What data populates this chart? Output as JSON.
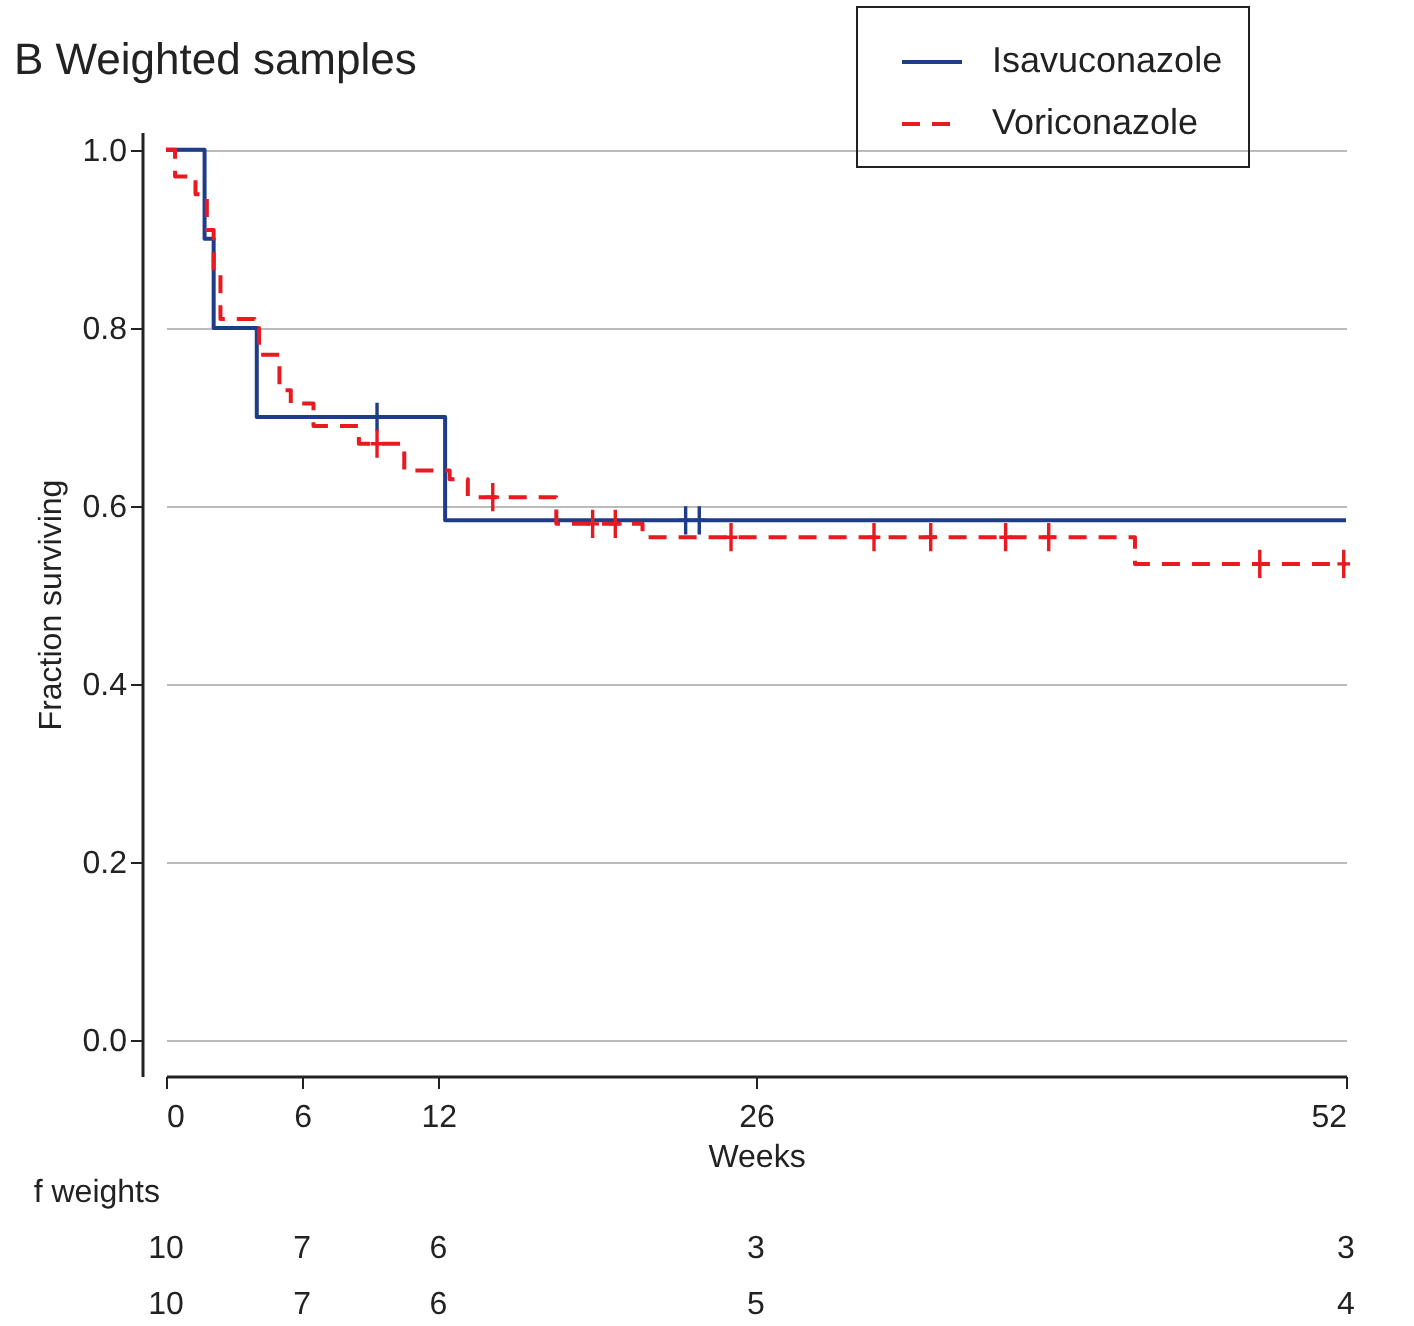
{
  "chart_data": {
    "type": "step",
    "title": "B Weighted samples",
    "xlabel": "Weeks",
    "ylabel": "Fraction surviving",
    "xlim": [
      0,
      52
    ],
    "xticks": [
      0,
      6,
      12,
      26,
      52
    ],
    "ylim": [
      -0.04,
      1.02
    ],
    "yticks": [
      {
        "value": 0,
        "label": "0.0"
      },
      {
        "value": 0.2,
        "label": "0.2"
      },
      {
        "value": 0.4,
        "label": "0.4"
      },
      {
        "value": 0.6,
        "label": "0.6"
      },
      {
        "value": 0.8,
        "label": "0.8"
      },
      {
        "value": 1,
        "label": "1.0"
      }
    ],
    "grid": "y",
    "legend": "top right",
    "series": [
      {
        "name": "Isavuconazole",
        "color": "#1f3c88",
        "line_style": "solid",
        "x": [
          0,
          1.7,
          2.1,
          4.0,
          12.3,
          52
        ],
        "values": [
          1.0,
          0.9,
          0.8,
          0.7,
          0.584,
          0.584
        ]
      },
      {
        "name": "Voriconazole",
        "color": "#e8191f",
        "line_style": "dashed",
        "x": [
          0,
          0.4,
          1.3,
          1.8,
          2.1,
          2.4,
          3.9,
          4.1,
          5.0,
          5.5,
          6.5,
          8.5,
          10.5,
          12.5,
          13.3,
          17.2,
          21,
          42.7,
          52
        ],
        "values": [
          1.0,
          0.97,
          0.95,
          0.91,
          0.86,
          0.81,
          0.8,
          0.77,
          0.73,
          0.715,
          0.69,
          0.67,
          0.64,
          0.63,
          0.61,
          0.58,
          0.565,
          0.535,
          0.535
        ]
      },
      {
        "type": "scatter",
        "marker": "cross",
        "color": "#1f3c88",
        "x": [
          9.3,
          22.9,
          23.5
        ],
        "values": [
          0.7,
          0.584,
          0.584
        ]
      },
      {
        "type": "scatter",
        "marker": "cross",
        "color": "#e8191f",
        "x": [
          9.3,
          14.4,
          18.8,
          19.8,
          24.9,
          31.2,
          33.7,
          37.0,
          38.9,
          48.2,
          51.9
        ],
        "values": [
          0.67,
          0.61,
          0.58,
          0.58,
          0.565,
          0.565,
          0.565,
          0.565,
          0.565,
          0.535,
          0.535
        ]
      }
    ],
    "annotations": [
      "f weights",
      "10",
      "7",
      "6",
      "3",
      "3",
      "10",
      "7",
      "6",
      "5",
      "4"
    ]
  }
}
